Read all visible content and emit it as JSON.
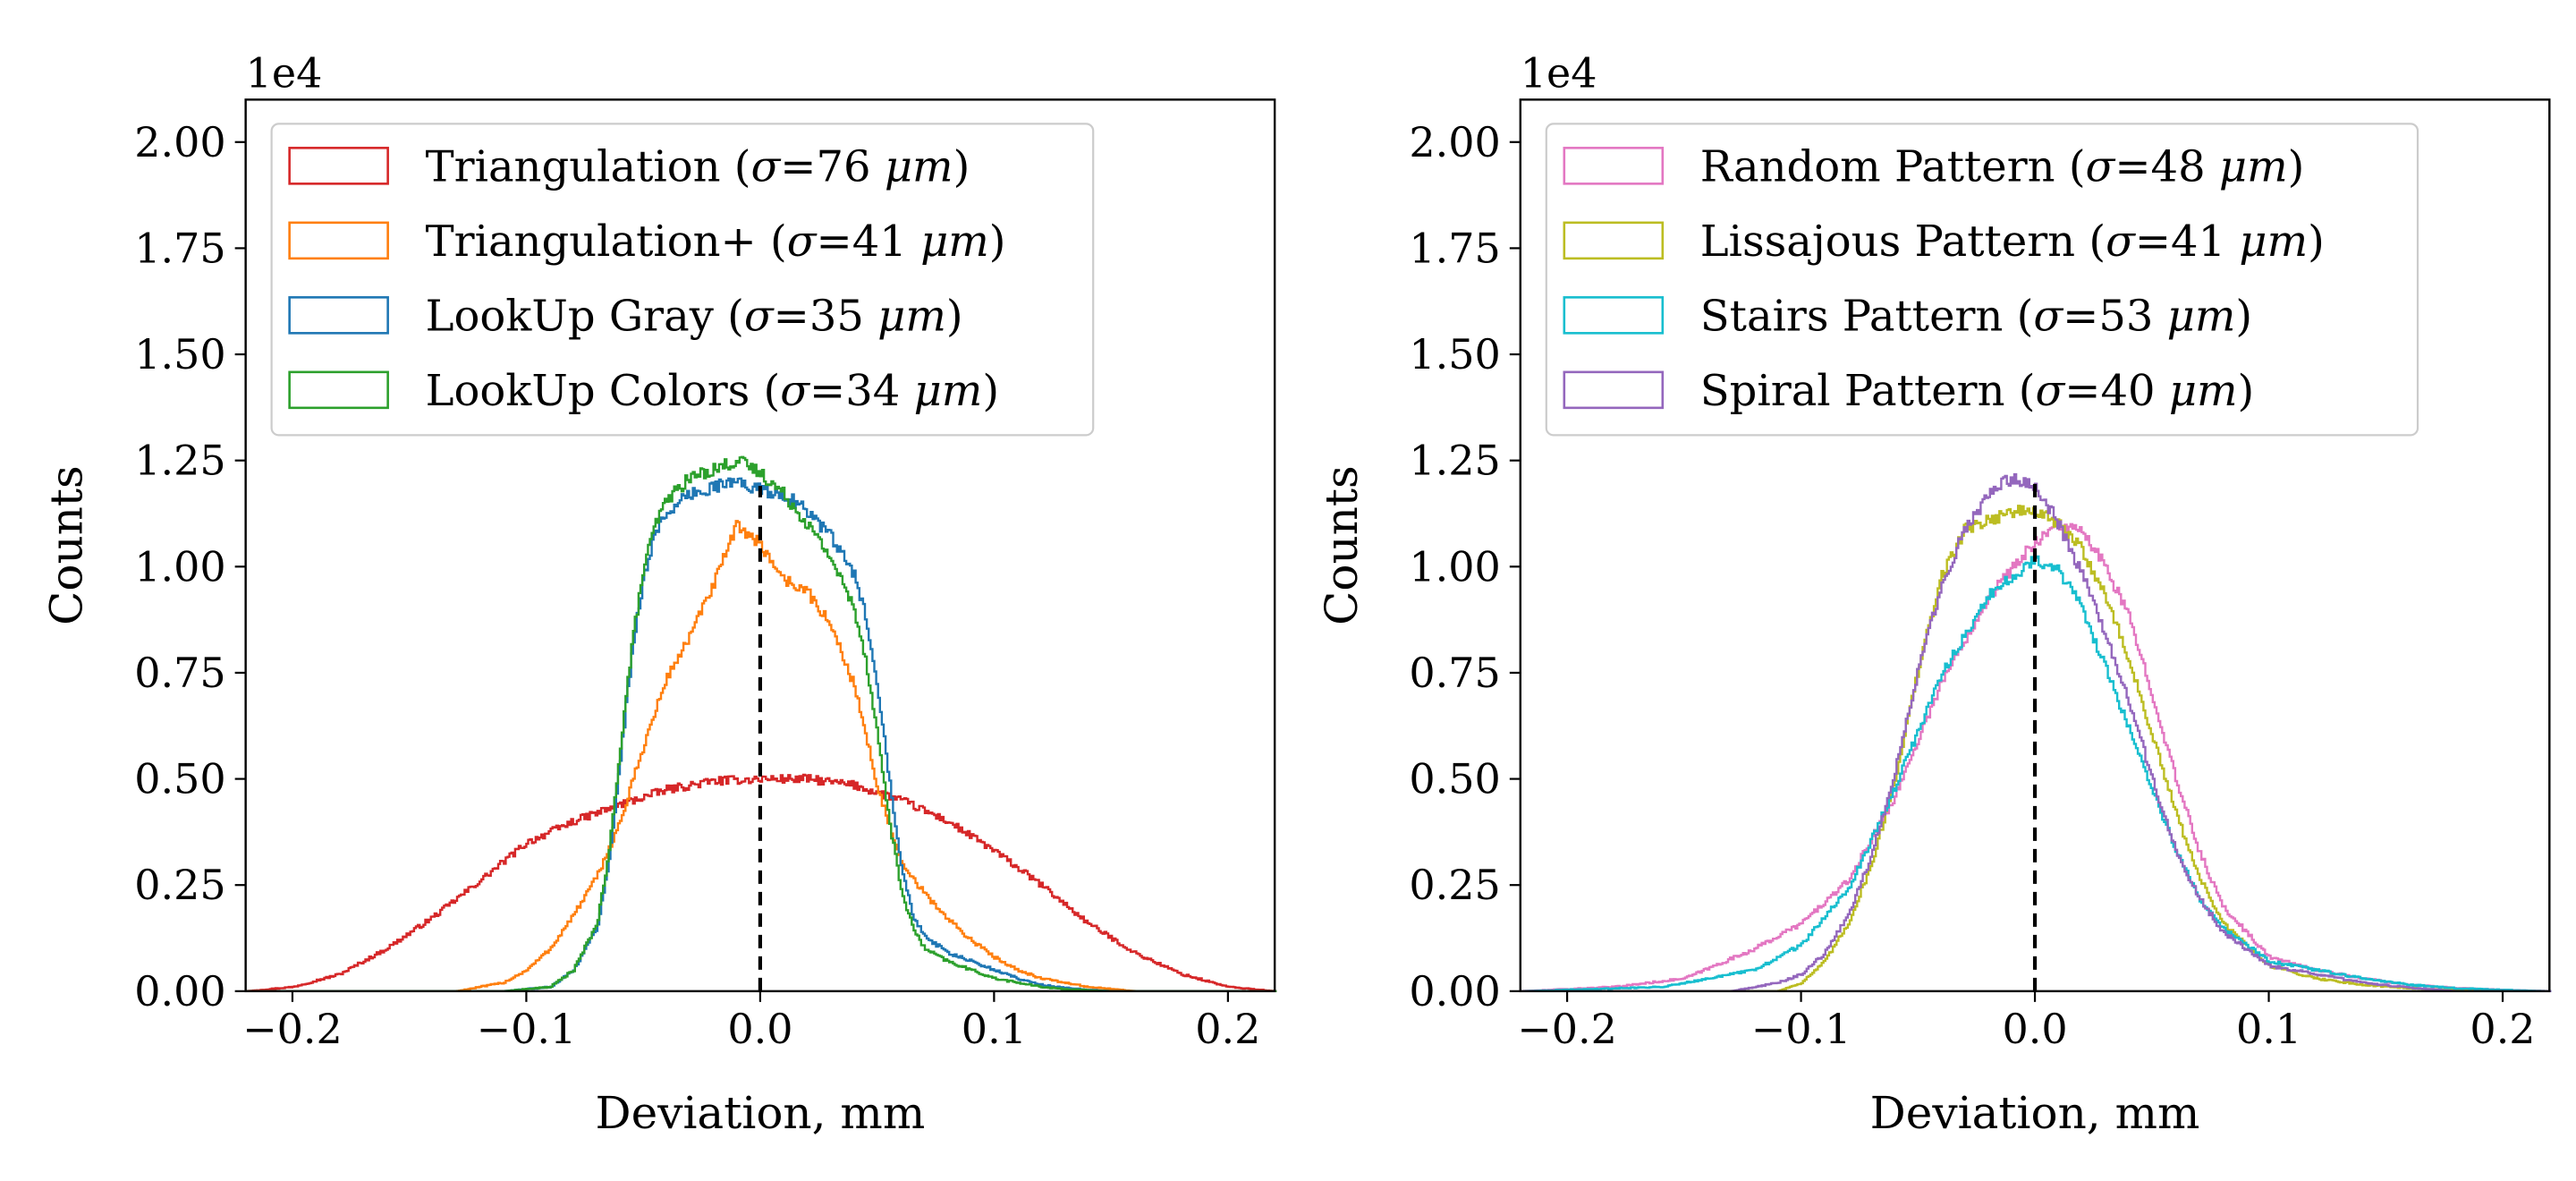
{
  "chart_data": [
    {
      "type": "histogram",
      "xlabel": "Deviation, mm",
      "ylabel": "Counts",
      "y_offset_text": "1e4",
      "xlim": [
        -0.22,
        0.22
      ],
      "ylim": [
        0,
        2.1
      ],
      "xticks": [
        -0.2,
        -0.1,
        0.0,
        0.1,
        0.2
      ],
      "xtick_labels": [
        "−0.2",
        "−0.1",
        "0.0",
        "0.1",
        "0.2"
      ],
      "yticks": [
        0,
        0.25,
        0.5,
        0.75,
        1.0,
        1.25,
        1.5,
        1.75,
        2.0
      ],
      "ytick_labels": [
        "0.00",
        "0.25",
        "0.50",
        "0.75",
        "1.00",
        "1.25",
        "1.50",
        "1.75",
        "2.00"
      ],
      "reference_line": {
        "x": 0.0,
        "style": "dashed",
        "y_top": 1.19
      },
      "legend_position": "upper-left",
      "series": [
        {
          "name": "Triangulation",
          "label_prefix": "Triangulation (",
          "sigma_symbol": "σ",
          "sigma_value": "=76 ",
          "unit": "μm",
          "label_suffix": ")",
          "color": "#d62728",
          "x": [
            -0.22,
            -0.2,
            -0.18,
            -0.16,
            -0.14,
            -0.12,
            -0.1,
            -0.08,
            -0.06,
            -0.04,
            -0.02,
            0.0,
            0.02,
            0.04,
            0.06,
            0.08,
            0.1,
            0.12,
            0.14,
            0.16,
            0.18,
            0.2,
            0.22
          ],
          "values": [
            0.0,
            0.02,
            0.08,
            0.2,
            0.35,
            0.52,
            0.7,
            0.8,
            0.88,
            0.95,
            0.99,
            1.0,
            1.0,
            0.97,
            0.9,
            0.8,
            0.66,
            0.5,
            0.32,
            0.18,
            0.08,
            0.02,
            0.0
          ],
          "scale": 0.5
        },
        {
          "name": "Triangulation+",
          "label_prefix": "Triangulation+ (",
          "sigma_symbol": "σ",
          "sigma_value": "=41 ",
          "unit": "μm",
          "label_suffix": ")",
          "color": "#ff7f0e",
          "x": [
            -0.13,
            -0.11,
            -0.1,
            -0.09,
            -0.08,
            -0.07,
            -0.06,
            -0.05,
            -0.04,
            -0.03,
            -0.02,
            -0.01,
            0.0,
            0.01,
            0.02,
            0.03,
            0.04,
            0.05,
            0.06,
            0.07,
            0.08,
            0.09,
            0.1,
            0.11,
            0.12,
            0.13,
            0.14,
            0.15,
            0.16
          ],
          "values": [
            0.0,
            0.02,
            0.05,
            0.1,
            0.18,
            0.27,
            0.4,
            0.58,
            0.74,
            0.84,
            0.96,
            1.1,
            1.05,
            0.97,
            0.94,
            0.86,
            0.72,
            0.48,
            0.3,
            0.23,
            0.17,
            0.12,
            0.08,
            0.05,
            0.03,
            0.02,
            0.01,
            0.005,
            0.0
          ],
          "scale": 1.0
        },
        {
          "name": "LookUp Gray",
          "label_prefix": "LookUp Gray (",
          "sigma_symbol": "σ",
          "sigma_value": "=35 ",
          "unit": "μm",
          "label_suffix": ")",
          "color": "#1f77b4",
          "x": [
            -0.11,
            -0.09,
            -0.08,
            -0.07,
            -0.065,
            -0.06,
            -0.055,
            -0.05,
            -0.045,
            -0.04,
            -0.03,
            -0.02,
            -0.01,
            0.0,
            0.01,
            0.02,
            0.03,
            0.04,
            0.045,
            0.05,
            0.055,
            0.06,
            0.065,
            0.07,
            0.08,
            0.09,
            0.1,
            0.11,
            0.12,
            0.13,
            0.14,
            0.15
          ],
          "values": [
            0.0,
            0.01,
            0.05,
            0.15,
            0.3,
            0.55,
            0.8,
            0.98,
            1.08,
            1.13,
            1.17,
            1.19,
            1.2,
            1.18,
            1.17,
            1.13,
            1.07,
            0.98,
            0.88,
            0.72,
            0.5,
            0.3,
            0.18,
            0.13,
            0.09,
            0.07,
            0.05,
            0.03,
            0.015,
            0.008,
            0.003,
            0.0
          ],
          "scale": 1.0
        },
        {
          "name": "LookUp Colors",
          "label_prefix": "LookUp Colors (",
          "sigma_symbol": "σ",
          "sigma_value": "=34 ",
          "unit": "μm",
          "label_suffix": ")",
          "color": "#2ca02c",
          "x": [
            -0.11,
            -0.09,
            -0.08,
            -0.07,
            -0.065,
            -0.06,
            -0.055,
            -0.05,
            -0.045,
            -0.04,
            -0.03,
            -0.02,
            -0.01,
            0.0,
            0.01,
            0.02,
            0.03,
            0.04,
            0.045,
            0.05,
            0.055,
            0.06,
            0.065,
            0.07,
            0.08,
            0.09,
            0.1,
            0.11,
            0.12,
            0.13,
            0.14,
            0.15
          ],
          "values": [
            0.0,
            0.01,
            0.05,
            0.16,
            0.32,
            0.58,
            0.82,
            1.0,
            1.1,
            1.16,
            1.21,
            1.23,
            1.25,
            1.22,
            1.17,
            1.1,
            1.02,
            0.9,
            0.78,
            0.6,
            0.4,
            0.24,
            0.15,
            0.1,
            0.07,
            0.05,
            0.03,
            0.02,
            0.01,
            0.005,
            0.002,
            0.0
          ],
          "scale": 1.0
        }
      ]
    },
    {
      "type": "histogram",
      "xlabel": "Deviation, mm",
      "ylabel": "Counts",
      "y_offset_text": "1e4",
      "xlim": [
        -0.22,
        0.22
      ],
      "ylim": [
        0,
        2.1
      ],
      "xticks": [
        -0.2,
        -0.1,
        0.0,
        0.1,
        0.2
      ],
      "xtick_labels": [
        "−0.2",
        "−0.1",
        "0.0",
        "0.1",
        "0.2"
      ],
      "yticks": [
        0,
        0.25,
        0.5,
        0.75,
        1.0,
        1.25,
        1.5,
        1.75,
        2.0
      ],
      "ytick_labels": [
        "0.00",
        "0.25",
        "0.50",
        "0.75",
        "1.00",
        "1.25",
        "1.50",
        "1.75",
        "2.00"
      ],
      "reference_line": {
        "x": 0.0,
        "style": "dashed",
        "y_top": 1.2
      },
      "legend_position": "upper-left",
      "series": [
        {
          "name": "Random Pattern",
          "label_prefix": "Random Pattern (",
          "sigma_symbol": "σ",
          "sigma_value": "=48 ",
          "unit": "μm",
          "label_suffix": ")",
          "color": "#e377c2",
          "x": [
            -0.22,
            -0.18,
            -0.15,
            -0.12,
            -0.1,
            -0.08,
            -0.06,
            -0.04,
            -0.02,
            0.0,
            0.01,
            0.02,
            0.03,
            0.04,
            0.05,
            0.06,
            0.07,
            0.08,
            0.1,
            0.12,
            0.14,
            0.16,
            0.18,
            0.2,
            0.22
          ],
          "values": [
            0.0,
            0.01,
            0.03,
            0.1,
            0.16,
            0.26,
            0.46,
            0.73,
            0.93,
            1.06,
            1.1,
            1.08,
            1.0,
            0.88,
            0.7,
            0.5,
            0.33,
            0.2,
            0.08,
            0.05,
            0.03,
            0.015,
            0.007,
            0.003,
            0.0
          ],
          "scale": 1.0
        },
        {
          "name": "Lissajous Pattern",
          "label_prefix": "Lissajous Pattern (",
          "sigma_symbol": "σ",
          "sigma_value": "=41 ",
          "unit": "μm",
          "label_suffix": ")",
          "color": "#bcbd22",
          "x": [
            -0.11,
            -0.1,
            -0.09,
            -0.08,
            -0.07,
            -0.06,
            -0.05,
            -0.04,
            -0.03,
            -0.02,
            -0.01,
            0.0,
            0.01,
            0.02,
            0.03,
            0.04,
            0.05,
            0.06,
            0.07,
            0.08,
            0.1,
            0.12,
            0.14,
            0.16,
            0.18,
            0.2
          ],
          "values": [
            0.0,
            0.02,
            0.07,
            0.16,
            0.3,
            0.5,
            0.76,
            0.98,
            1.09,
            1.11,
            1.13,
            1.13,
            1.1,
            1.04,
            0.93,
            0.78,
            0.6,
            0.42,
            0.27,
            0.16,
            0.06,
            0.03,
            0.015,
            0.007,
            0.003,
            0.0
          ],
          "scale": 1.0
        },
        {
          "name": "Stairs Pattern",
          "label_prefix": "Stairs Pattern (",
          "sigma_symbol": "σ",
          "sigma_value": "=53 ",
          "unit": "μm",
          "label_suffix": ")",
          "color": "#17becf",
          "x": [
            -0.22,
            -0.16,
            -0.12,
            -0.1,
            -0.08,
            -0.06,
            -0.04,
            -0.02,
            0.0,
            0.01,
            0.02,
            0.04,
            0.06,
            0.07,
            0.08,
            0.1,
            0.12,
            0.14,
            0.16,
            0.18,
            0.2,
            0.22
          ],
          "values": [
            0.0,
            0.01,
            0.05,
            0.11,
            0.24,
            0.48,
            0.75,
            0.93,
            1.02,
            0.99,
            0.9,
            0.62,
            0.33,
            0.22,
            0.15,
            0.07,
            0.05,
            0.03,
            0.015,
            0.007,
            0.003,
            0.0
          ],
          "scale": 1.0
        },
        {
          "name": "Spiral Pattern",
          "label_prefix": "Spiral Pattern (",
          "sigma_symbol": "σ",
          "sigma_value": "=40 ",
          "unit": "μm",
          "label_suffix": ")",
          "color": "#9467bd",
          "x": [
            -0.13,
            -0.11,
            -0.1,
            -0.09,
            -0.08,
            -0.07,
            -0.06,
            -0.05,
            -0.04,
            -0.03,
            -0.02,
            -0.01,
            0.0,
            0.01,
            0.02,
            0.03,
            0.04,
            0.05,
            0.06,
            0.07,
            0.08,
            0.1,
            0.12,
            0.14,
            0.16,
            0.18
          ],
          "values": [
            0.0,
            0.02,
            0.04,
            0.09,
            0.18,
            0.32,
            0.52,
            0.76,
            0.96,
            1.09,
            1.17,
            1.21,
            1.19,
            1.1,
            0.98,
            0.84,
            0.68,
            0.5,
            0.33,
            0.22,
            0.14,
            0.06,
            0.04,
            0.02,
            0.008,
            0.0
          ],
          "scale": 1.0
        }
      ]
    }
  ]
}
